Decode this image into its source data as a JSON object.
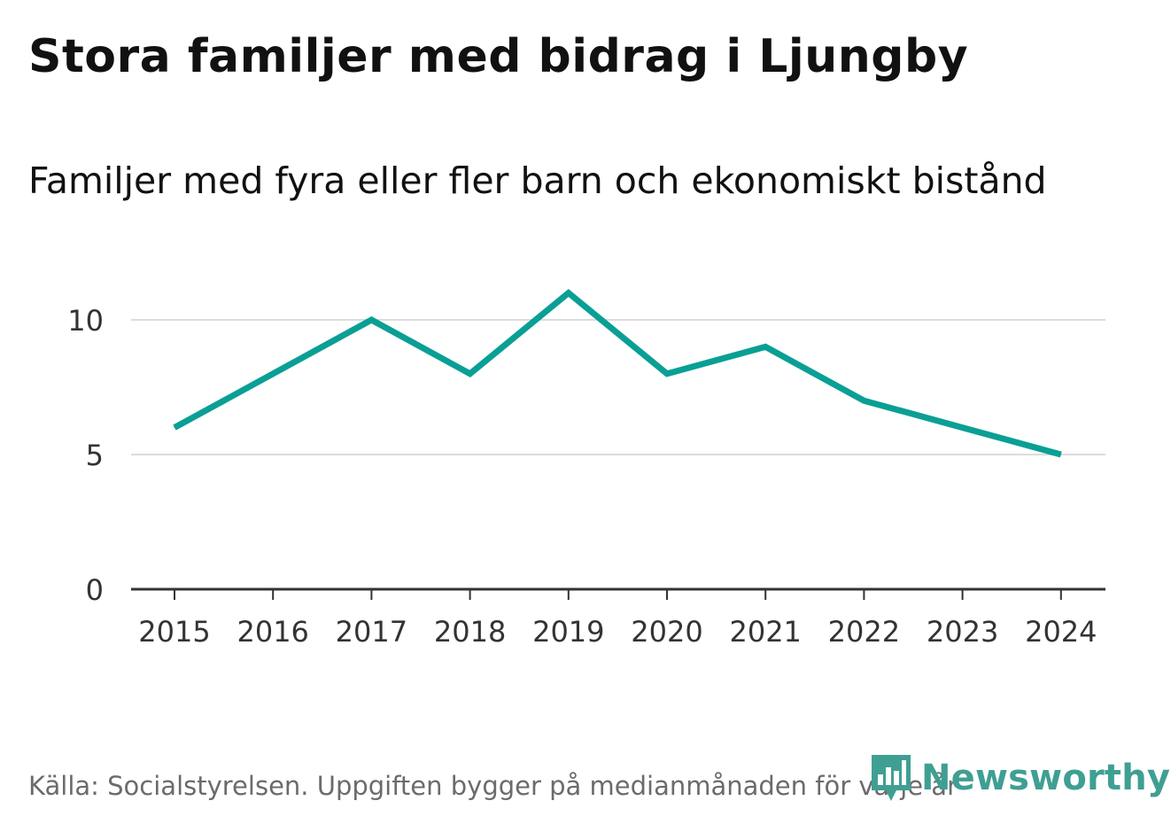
{
  "title": "Stora familjer med bidrag i Ljungby",
  "subtitle": "Familjer med fyra eller fler barn och ekonomiskt bistånd",
  "source": "Källa: Socialstyrelsen. Uppgiften bygger på medianmånaden för varje år",
  "logo": {
    "text": "Newsworthy",
    "icon": "newsworthy-chart-icon",
    "color": "#3f9f93"
  },
  "colors": {
    "line": "#0a9f95",
    "grid": "#dcdcdc",
    "axis": "#333333",
    "tick_label": "#333333"
  },
  "chart_data": {
    "type": "line",
    "x": [
      "2015",
      "2016",
      "2017",
      "2018",
      "2019",
      "2020",
      "2021",
      "2022",
      "2023",
      "2024"
    ],
    "series": [
      {
        "values": [
          6,
          8,
          10,
          8,
          11,
          8,
          9,
          7,
          6,
          5
        ]
      }
    ],
    "yticks": [
      0,
      5,
      10
    ],
    "ylim": [
      0,
      12
    ],
    "grid": true,
    "xlabel": "",
    "ylabel": ""
  }
}
